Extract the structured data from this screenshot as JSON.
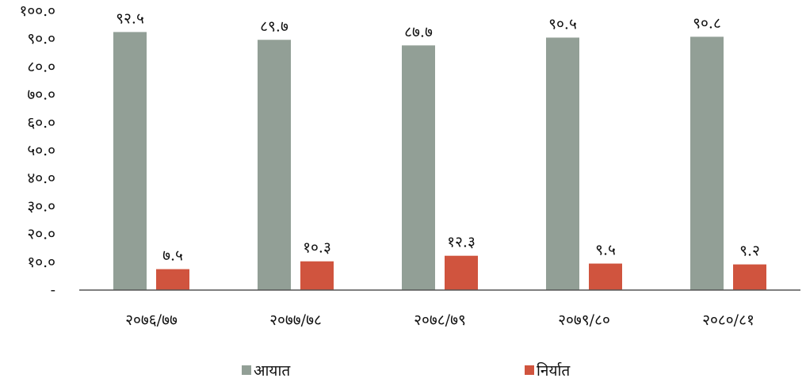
{
  "chart_data": {
    "type": "bar",
    "categories": [
      "२०७६/७७",
      "२०७७/७८",
      "२०७८/७९",
      "२०७९/८०",
      "२०८०/८१"
    ],
    "series": [
      {
        "name": "आयात",
        "color": "#929f96",
        "values": [
          92.5,
          89.7,
          87.7,
          90.5,
          90.8
        ],
        "labels": [
          "९२.५",
          "८९.७",
          "८७.७",
          "९०.५",
          "९०.८"
        ]
      },
      {
        "name": "निर्यात",
        "color": "#d0543e",
        "values": [
          7.5,
          10.3,
          12.3,
          9.5,
          9.2
        ],
        "labels": [
          "७.५",
          "१०.३",
          "१२.३",
          "९.५",
          "९.२"
        ]
      }
    ],
    "ylim": [
      0,
      100
    ],
    "yticks": [
      0,
      10,
      20,
      30,
      40,
      50,
      60,
      70,
      80,
      90,
      100
    ],
    "ytick_labels": [
      "-",
      "१०.०",
      "२०.०",
      "३०.०",
      "४०.०",
      "५०.०",
      "६०.०",
      "७०.०",
      "८०.०",
      "९०.०",
      "१००.०"
    ],
    "grid": false,
    "legend_position": "bottom",
    "title": "",
    "xlabel": "",
    "ylabel": ""
  }
}
